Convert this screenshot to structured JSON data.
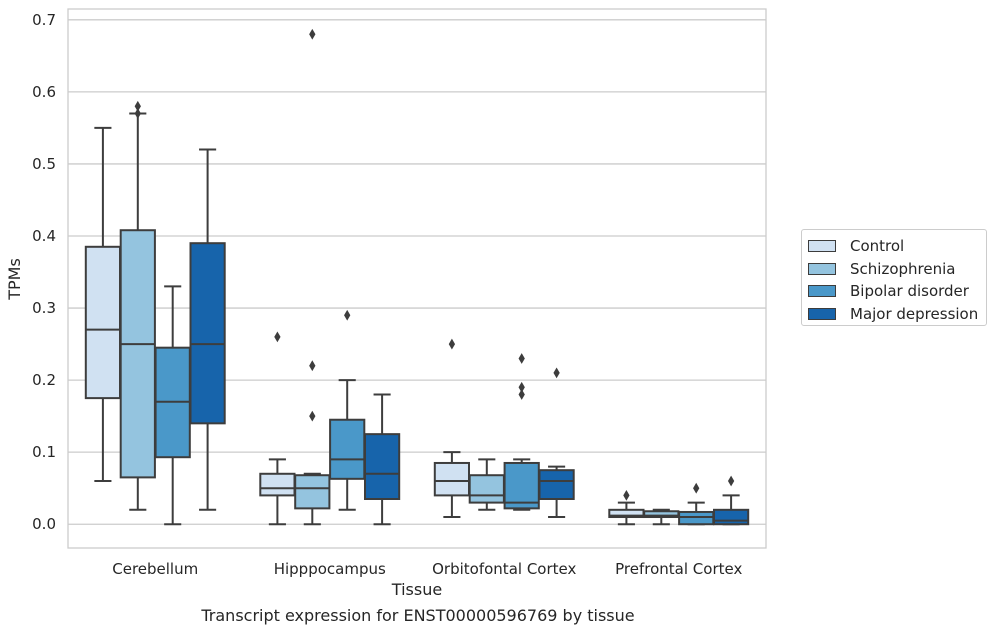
{
  "caption": "Transcript expression for ENST00000596769 by tissue",
  "chart_data": {
    "type": "box",
    "xlabel": "Tissue",
    "ylabel": "TPMs",
    "ylim": [
      -0.033,
      0.715
    ],
    "yticks": [
      0.0,
      0.1,
      0.2,
      0.3,
      0.4,
      0.5,
      0.6,
      0.7
    ],
    "ytick_labels": [
      "0.0",
      "0.1",
      "0.2",
      "0.3",
      "0.4",
      "0.5",
      "0.6",
      "0.7"
    ],
    "grid": "horizontal",
    "legend_position": "right",
    "categories": [
      "Cerebellum",
      "Hipppocampus",
      "Orbitofontal Cortex",
      "Prefrontal Cortex"
    ],
    "series": [
      {
        "name": "Control",
        "color": "#d0e1f2",
        "boxes": [
          {
            "whisker_low": 0.06,
            "q1": 0.175,
            "median": 0.27,
            "q3": 0.385,
            "whisker_high": 0.55,
            "outliers": []
          },
          {
            "whisker_low": 0.0,
            "q1": 0.04,
            "median": 0.05,
            "q3": 0.07,
            "whisker_high": 0.09,
            "outliers": [
              0.26
            ]
          },
          {
            "whisker_low": 0.01,
            "q1": 0.04,
            "median": 0.06,
            "q3": 0.085,
            "whisker_high": 0.1,
            "outliers": [
              0.25
            ]
          },
          {
            "whisker_low": 0.0,
            "q1": 0.01,
            "median": 0.012,
            "q3": 0.02,
            "whisker_high": 0.03,
            "outliers": [
              0.04
            ]
          }
        ]
      },
      {
        "name": "Schizophrenia",
        "color": "#94c4df",
        "boxes": [
          {
            "whisker_low": 0.02,
            "q1": 0.065,
            "median": 0.25,
            "q3": 0.408,
            "whisker_high": 0.57,
            "outliers": [
              0.58,
              0.57
            ]
          },
          {
            "whisker_low": 0.0,
            "q1": 0.022,
            "median": 0.05,
            "q3": 0.068,
            "whisker_high": 0.07,
            "outliers": [
              0.68,
              0.22,
              0.15
            ]
          },
          {
            "whisker_low": 0.02,
            "q1": 0.03,
            "median": 0.04,
            "q3": 0.068,
            "whisker_high": 0.09,
            "outliers": []
          },
          {
            "whisker_low": 0.0,
            "q1": 0.01,
            "median": 0.012,
            "q3": 0.018,
            "whisker_high": 0.02,
            "outliers": []
          }
        ]
      },
      {
        "name": "Bipolar disorder",
        "color": "#4a98c9",
        "boxes": [
          {
            "whisker_low": 0.0,
            "q1": 0.093,
            "median": 0.17,
            "q3": 0.245,
            "whisker_high": 0.33,
            "outliers": []
          },
          {
            "whisker_low": 0.02,
            "q1": 0.063,
            "median": 0.09,
            "q3": 0.145,
            "whisker_high": 0.2,
            "outliers": [
              0.29
            ]
          },
          {
            "whisker_low": 0.02,
            "q1": 0.022,
            "median": 0.03,
            "q3": 0.085,
            "whisker_high": 0.09,
            "outliers": [
              0.23,
              0.19,
              0.18
            ]
          },
          {
            "whisker_low": 0.0,
            "q1": 0.0,
            "median": 0.01,
            "q3": 0.017,
            "whisker_high": 0.03,
            "outliers": [
              0.05
            ]
          }
        ]
      },
      {
        "name": "Major depression",
        "color": "#1764ab",
        "boxes": [
          {
            "whisker_low": 0.02,
            "q1": 0.14,
            "median": 0.25,
            "q3": 0.39,
            "whisker_high": 0.52,
            "outliers": []
          },
          {
            "whisker_low": 0.0,
            "q1": 0.035,
            "median": 0.07,
            "q3": 0.125,
            "whisker_high": 0.18,
            "outliers": []
          },
          {
            "whisker_low": 0.01,
            "q1": 0.035,
            "median": 0.06,
            "q3": 0.075,
            "whisker_high": 0.08,
            "outliers": [
              0.21
            ]
          },
          {
            "whisker_low": 0.0,
            "q1": 0.0,
            "median": 0.005,
            "q3": 0.02,
            "whisker_high": 0.04,
            "outliers": [
              0.06
            ]
          }
        ]
      }
    ]
  }
}
